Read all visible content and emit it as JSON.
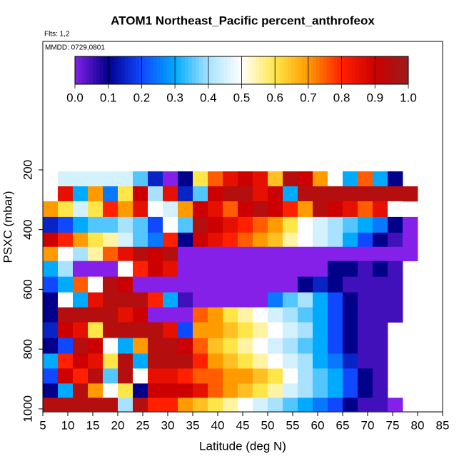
{
  "chart_data": {
    "type": "heatmap",
    "title": "ATOM1 Northeast_Pacific percent_anthrofeox",
    "subtitle": "Flts: 1,2",
    "annotation": "MMDD: 0729,0801",
    "xlabel": "Latitude (deg N)",
    "ylabel": "PSXC (mbar)",
    "xlim": [
      5,
      85
    ],
    "xticks": [
      5,
      10,
      15,
      20,
      25,
      30,
      35,
      40,
      45,
      50,
      55,
      60,
      65,
      70,
      75,
      80,
      85
    ],
    "ylim": [
      1010,
      -230
    ],
    "yticks": [
      200,
      400,
      600,
      800,
      1000
    ],
    "clim": [
      0,
      1
    ],
    "cticks": [
      {
        "value": 0,
        "label": "0.0"
      },
      {
        "value": 0.1,
        "label": "0.1"
      },
      {
        "value": 0.2,
        "label": "0.2"
      },
      {
        "value": 0.3,
        "label": "0.3"
      },
      {
        "value": 0.4,
        "label": "0.4"
      },
      {
        "value": 0.5,
        "label": "0.5"
      },
      {
        "value": 0.6,
        "label": "0.6"
      },
      {
        "value": 0.7,
        "label": "0.7"
      },
      {
        "value": 0.8,
        "label": "0.8"
      },
      {
        "value": 0.9,
        "label": "0.9"
      },
      {
        "value": 1,
        "label": "1.0"
      }
    ],
    "colorscale": [
      "#8420e8",
      "#00008b",
      "#1048ff",
      "#00aaff",
      "#a8e2ff",
      "#ffffff",
      "#ffe648",
      "#ff9a00",
      "#ff2000",
      "#cc0000",
      "#9b1c1c"
    ],
    "x": [
      6.5,
      9.5,
      12.5,
      15.5,
      18.5,
      21.5,
      24.5,
      27.5,
      30.5,
      33.5,
      36.5,
      39.5,
      42.5,
      45.5,
      48.5,
      51.5,
      54.5,
      57.5,
      60.5,
      63.5,
      66.5,
      69.5,
      72.5,
      75.5,
      78.5
    ],
    "y": [
      230,
      280,
      330,
      385,
      435,
      480,
      530,
      585,
      635,
      685,
      735,
      790,
      840,
      890,
      940,
      985
    ],
    "z": [
      [
        null,
        0.45,
        0.45,
        0.45,
        0.45,
        0.45,
        0.35,
        0.15,
        0.0,
        0.1,
        0.6,
        0.75,
        0.85,
        0.9,
        0.85,
        0.65,
        0.95,
        0.9,
        0.7,
        0.5,
        0.3,
        0.75,
        0.3,
        0.1,
        null
      ],
      [
        null,
        0.85,
        0.3,
        0.7,
        0.25,
        0.6,
        0.9,
        0.4,
        0.85,
        0.15,
        0.35,
        0.9,
        0.95,
        0.95,
        0.85,
        0.9,
        0.3,
        0.95,
        0.95,
        0.95,
        0.95,
        0.95,
        0.95,
        0.95,
        0.95
      ],
      [
        0.7,
        0.6,
        0.45,
        0.6,
        0.8,
        0.7,
        0.85,
        0.5,
        0.45,
        0.7,
        0.9,
        0.85,
        0.75,
        0.9,
        0.95,
        0.9,
        0.8,
        0.7,
        0.95,
        0.9,
        0.85,
        0.75,
        0.85,
        0.5,
        null
      ],
      [
        0.15,
        0.2,
        0.3,
        0.35,
        0.35,
        0.4,
        0.35,
        0.2,
        0.5,
        0.35,
        0.95,
        0.9,
        0.85,
        0.8,
        0.75,
        0.7,
        0.6,
        0.5,
        0.45,
        0.4,
        0.35,
        0.3,
        0.25,
        0.1,
        0.0
      ],
      [
        0.9,
        0.8,
        0.7,
        0.6,
        0.55,
        0.45,
        0.35,
        0.25,
        0.8,
        0.1,
        0.9,
        0.85,
        0.8,
        0.75,
        0.7,
        0.65,
        0.55,
        0.5,
        0.45,
        0.4,
        0.3,
        0.2,
        0.1,
        0.05,
        0.0
      ],
      [
        0.7,
        0.5,
        0.4,
        0.55,
        0.75,
        0.85,
        0.95,
        0.9,
        0.95,
        0.0,
        0.0,
        0.0,
        0.0,
        0.0,
        0.0,
        0.0,
        0.0,
        0.0,
        0.0,
        0.0,
        0.0,
        0.0,
        0.0,
        0.0,
        0.0
      ],
      [
        0.3,
        0.4,
        0.0,
        0.0,
        0.0,
        0.5,
        0.8,
        0.9,
        0.85,
        0.0,
        0.0,
        0.0,
        0.0,
        0.0,
        0.0,
        0.0,
        0.0,
        0.0,
        0.0,
        0.1,
        0.1,
        0.05,
        0.1,
        0.05,
        null
      ],
      [
        0.2,
        0.3,
        0.75,
        0.5,
        0.95,
        0.9,
        0.0,
        0.0,
        0.0,
        0.0,
        0.0,
        0.0,
        0.0,
        0.0,
        0.0,
        0.0,
        0.0,
        0.1,
        0.15,
        0.1,
        0.05,
        0.05,
        0.05,
        0.05,
        null
      ],
      [
        0.1,
        0.5,
        0.3,
        0.85,
        0.95,
        0.95,
        0.95,
        0.8,
        0.3,
        0.05,
        0.0,
        0.0,
        0.0,
        0.0,
        0.0,
        0.25,
        0.35,
        0.4,
        0.3,
        0.2,
        0.1,
        0.05,
        0.05,
        0.05,
        null
      ],
      [
        0.1,
        0.95,
        0.95,
        0.95,
        0.95,
        0.85,
        0.9,
        0.0,
        0.0,
        0.0,
        0.75,
        0.7,
        0.6,
        0.55,
        0.5,
        0.45,
        0.4,
        0.35,
        0.3,
        0.2,
        0.1,
        0.05,
        0.05,
        0.05,
        null
      ],
      [
        0.15,
        0.9,
        0.85,
        0.6,
        0.95,
        0.95,
        0.95,
        0.95,
        0.85,
        0.2,
        0.7,
        0.7,
        0.65,
        0.6,
        0.55,
        0.5,
        0.45,
        0.4,
        0.3,
        0.2,
        0.1,
        0.05,
        0.05,
        null,
        null
      ],
      [
        0.1,
        0.2,
        0.95,
        0.9,
        0.5,
        0.3,
        0.7,
        0.95,
        0.95,
        0.9,
        0.75,
        0.65,
        0.6,
        0.55,
        0.5,
        0.45,
        0.4,
        0.35,
        0.3,
        0.2,
        0.1,
        0.05,
        0.05,
        null,
        null
      ],
      [
        0.3,
        0.8,
        0.9,
        0.85,
        0.6,
        0.95,
        0.3,
        0.95,
        0.95,
        0.95,
        0.8,
        0.7,
        0.65,
        0.6,
        0.55,
        0.5,
        0.45,
        0.4,
        0.3,
        0.25,
        0.15,
        0.05,
        0.05,
        null,
        null
      ],
      [
        0.2,
        0.9,
        0.8,
        0.95,
        0.35,
        0.95,
        0.5,
        0.85,
        0.85,
        0.8,
        0.75,
        0.75,
        0.7,
        0.7,
        0.65,
        0.6,
        0.5,
        0.4,
        0.35,
        0.3,
        0.2,
        0.1,
        0.05,
        null,
        null
      ],
      [
        0.1,
        0.3,
        0.95,
        0.7,
        0.5,
        0.6,
        0.1,
        0.9,
        0.9,
        0.9,
        0.85,
        0.75,
        0.7,
        0.65,
        0.6,
        0.55,
        0.45,
        0.4,
        0.35,
        0.3,
        0.2,
        0.1,
        0.05,
        null,
        null
      ],
      [
        0.95,
        0.95,
        0.95,
        0.95,
        0.95,
        0.4,
        0.95,
        0.8,
        0.8,
        0.7,
        0.65,
        0.6,
        0.55,
        0.5,
        0.45,
        0.4,
        0.35,
        0.3,
        0.25,
        0.2,
        0.1,
        0.05,
        0.05,
        0.0,
        null
      ]
    ]
  }
}
